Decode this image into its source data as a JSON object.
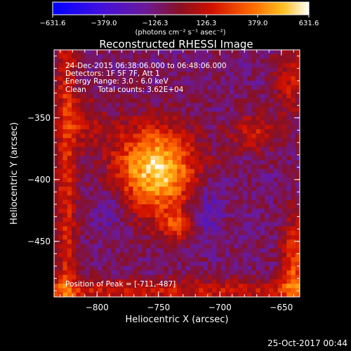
{
  "colorbar": {
    "tick_labels": [
      "-631.6",
      "-379.0",
      "-126.3",
      "126.3",
      "379.0",
      "631.6"
    ],
    "units": "(photons cm⁻² s⁻¹ asec⁻²)",
    "range": [
      -631.6,
      631.6
    ]
  },
  "chart_data": {
    "type": "heatmap",
    "title": "Reconstructed RHESSI Image",
    "xlabel": "Heliocentric X (arcsec)",
    "ylabel": "Heliocentric Y (arcsec)",
    "xlim": [
      -835,
      -635
    ],
    "ylim": [
      -495,
      -295
    ],
    "x_ticks": [
      -800,
      -750,
      -700,
      -650
    ],
    "y_ticks": [
      -350,
      -400,
      -450
    ],
    "x_tick_labels": [
      "−800",
      "−750",
      "−700",
      "−650"
    ],
    "y_tick_labels": [
      "−350",
      "−400",
      "−450"
    ],
    "grid": false,
    "colormap": "blue-purple-red-orange-yellow-white",
    "annotations": {
      "time": "24-Dec-2015 06:38:06.000 to 06:48:06.000",
      "detectors": "Detectors: 1F 5F 7F, Att 1",
      "energy": "Energy Range: 3.0 - 6.0 keV",
      "method_counts": "Clean     Total counts: 3.62E+04",
      "peak": "Position of Peak = [-711,-487]"
    },
    "peak_position": [
      -711,
      -487
    ],
    "total_counts": 36200,
    "energy_range_keV": [
      3.0,
      6.0
    ]
  },
  "footer": {
    "date": "25-Oct-2017 00:44"
  },
  "colors": {
    "background": "#000000",
    "foreground": "#ffffff"
  }
}
